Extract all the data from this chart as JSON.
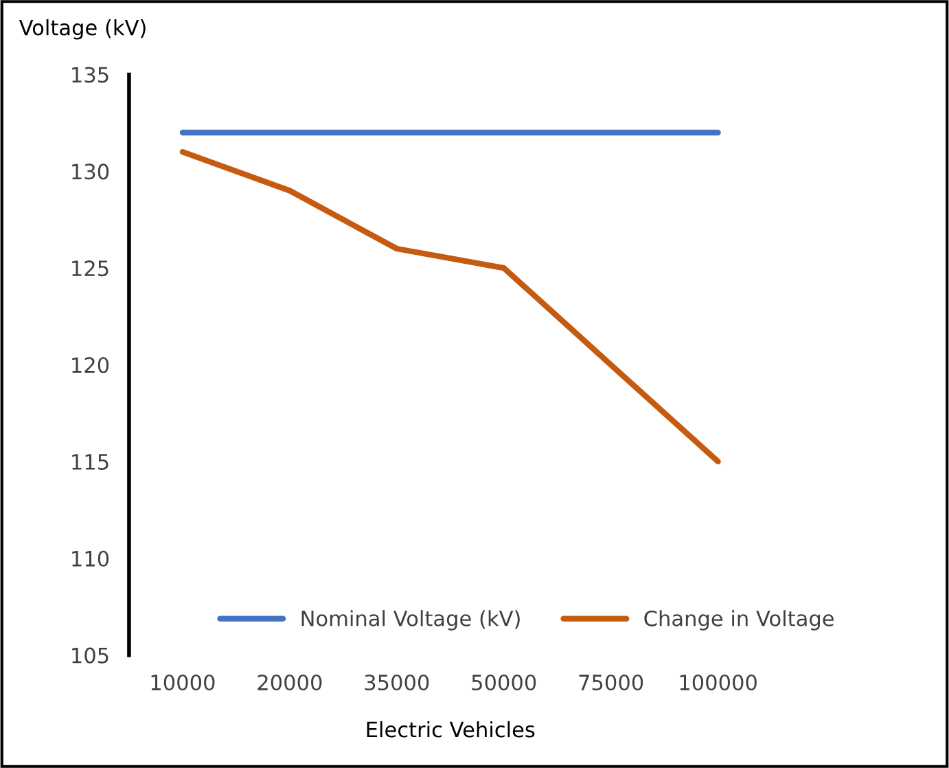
{
  "chart_data": {
    "type": "line",
    "ylabel": "Voltage (kV)",
    "xlabel": "Electric Vehicles",
    "categories": [
      "10000",
      "20000",
      "35000",
      "50000",
      "75000",
      "100000"
    ],
    "series": [
      {
        "name": "Nominal Voltage (kV)",
        "color": "#4472c4",
        "values": [
          132,
          132,
          132,
          132,
          132,
          132
        ]
      },
      {
        "name": "Change in Voltage",
        "color": "#c55a11",
        "values": [
          131,
          129,
          126,
          125,
          120,
          115
        ]
      }
    ],
    "ylim": [
      105,
      135
    ],
    "yticks": [
      105,
      110,
      115,
      120,
      125,
      130,
      135
    ],
    "grid": false,
    "legend": "bottom",
    "marker": "none",
    "line_style": "solid"
  }
}
